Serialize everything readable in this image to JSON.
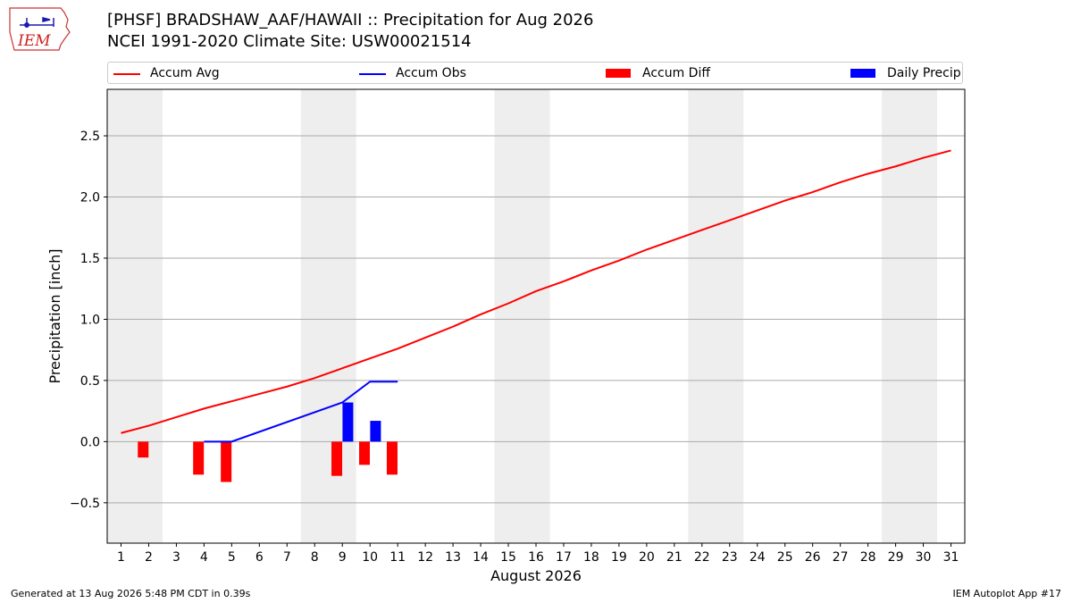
{
  "header": {
    "title_line1": "[PHSF] BRADSHAW_AAF/HAWAII :: Precipitation for Aug 2026",
    "title_line2": "NCEI 1991-2020 Climate Site: USW00021514",
    "logo_text": "IEM"
  },
  "legend": {
    "accum_avg": "Accum Avg",
    "accum_obs": "Accum Obs",
    "accum_diff": "Accum Diff",
    "daily_precip": "Daily Precip"
  },
  "colors": {
    "accum_avg": "#ff0000",
    "accum_obs": "#0000ff",
    "accum_diff": "#ff0000",
    "daily_precip": "#0000ff",
    "weekend_shade": "#eeeeee",
    "grid": "#aaaaaa"
  },
  "chart_data": {
    "type": "bar",
    "xlabel": "August 2026",
    "ylabel": "Precipitation [inch]",
    "ylim": [
      -0.83,
      2.88
    ],
    "xlim": [
      0.5,
      31.5
    ],
    "yticks": [
      -0.5,
      0.0,
      0.5,
      1.0,
      1.5,
      2.0,
      2.5
    ],
    "ytick_labels": [
      "−0.5",
      "0.0",
      "0.5",
      "1.0",
      "1.5",
      "2.0",
      "2.5"
    ],
    "xticks": [
      1,
      2,
      3,
      4,
      5,
      6,
      7,
      8,
      9,
      10,
      11,
      12,
      13,
      14,
      15,
      16,
      17,
      18,
      19,
      20,
      21,
      22,
      23,
      24,
      25,
      26,
      27,
      28,
      29,
      30,
      31
    ],
    "xtick_labels": [
      "1",
      "2",
      "3",
      "4",
      "5",
      "6",
      "7",
      "8",
      "9",
      "10",
      "11",
      "12",
      "13",
      "14",
      "15",
      "16",
      "17",
      "18",
      "19",
      "20",
      "21",
      "22",
      "23",
      "24",
      "25",
      "26",
      "27",
      "28",
      "29",
      "30",
      "31"
    ],
    "grid": "horizontal",
    "legend_position": "top",
    "weekend_spans": [
      [
        1,
        2
      ],
      [
        8,
        9
      ],
      [
        15,
        16
      ],
      [
        22,
        23
      ],
      [
        29,
        30
      ]
    ],
    "series": [
      {
        "name": "Accum Avg",
        "kind": "line",
        "x": [
          1,
          2,
          3,
          4,
          5,
          6,
          7,
          8,
          9,
          10,
          11,
          12,
          13,
          14,
          15,
          16,
          17,
          18,
          19,
          20,
          21,
          22,
          23,
          24,
          25,
          26,
          27,
          28,
          29,
          30,
          31
        ],
        "values": [
          0.07,
          0.13,
          0.2,
          0.27,
          0.33,
          0.39,
          0.45,
          0.52,
          0.6,
          0.68,
          0.76,
          0.85,
          0.94,
          1.04,
          1.13,
          1.23,
          1.31,
          1.4,
          1.48,
          1.57,
          1.65,
          1.73,
          1.81,
          1.89,
          1.97,
          2.04,
          2.12,
          2.19,
          2.25,
          2.32,
          2.38
        ]
      },
      {
        "name": "Accum Obs",
        "kind": "line",
        "x": [
          4,
          5,
          9,
          10,
          11
        ],
        "values": [
          0.0,
          0.0,
          0.32,
          0.49,
          0.49
        ]
      },
      {
        "name": "Accum Diff",
        "kind": "bar",
        "x": [
          2,
          4,
          5,
          9,
          10,
          11
        ],
        "values": [
          -0.13,
          -0.27,
          -0.33,
          -0.28,
          -0.19,
          -0.27
        ]
      },
      {
        "name": "Daily Precip",
        "kind": "bar",
        "x": [
          9,
          10
        ],
        "values": [
          0.32,
          0.17
        ]
      }
    ]
  },
  "footer": {
    "generated": "Generated at 13 Aug 2026 5:48 PM CDT in 0.39s",
    "app": "IEM Autoplot App #17"
  }
}
